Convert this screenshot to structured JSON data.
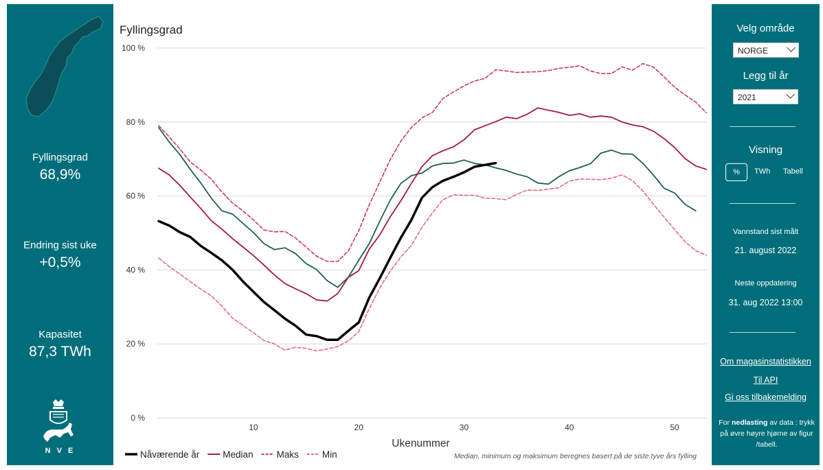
{
  "left": {
    "stats": [
      {
        "label": "Fyllingsgrad",
        "value": "68,9%"
      },
      {
        "label": "Endring sist uke",
        "value": "+0,5%"
      },
      {
        "label": "Kapasitet",
        "value": "87,3 TWh"
      }
    ],
    "logo_text": "N V E"
  },
  "right": {
    "area_label": "Velg område",
    "area_value": "NORGE",
    "year_label": "Legg til år",
    "year_value": "2021",
    "view_label": "Visning",
    "view_options": [
      "%",
      "TWh",
      "Tabell"
    ],
    "measured_label": "Vannstand sist målt",
    "measured_value": "21. august 2022",
    "next_label": "Neste oppdatering",
    "next_value": "31. aug 2022 13:00",
    "links": [
      "Om magasinstatistikken",
      "Til API",
      "Gi oss tilbakemelding"
    ],
    "note_prefix": "For ",
    "note_bold": "nedlasting",
    "note_rest": " av data : trykk på øvre høyre hjørne av figur /tabell."
  },
  "chart_data": {
    "type": "line",
    "title": "Fyllingsgrad",
    "xlabel": "Ukenummer",
    "ylabel": "",
    "xlim": [
      1,
      53
    ],
    "ylim": [
      0,
      100
    ],
    "x_ticks": [
      10,
      20,
      30,
      40,
      50
    ],
    "y_ticks": [
      "0 %",
      "20 %",
      "40 %",
      "60 %",
      "80 %",
      "100 %"
    ],
    "grid": true,
    "legend_position": "bottom-left",
    "footnote": "Median, minimum og maksimum beregnes basert på de siste tyve års fylling",
    "series": [
      {
        "name": "Nåværende år",
        "color": "#000000",
        "style": "solid-thick",
        "x": [
          1,
          2,
          3,
          4,
          5,
          6,
          7,
          8,
          9,
          10,
          11,
          12,
          13,
          14,
          15,
          16,
          17,
          18,
          19,
          20,
          21,
          22,
          23,
          24,
          25,
          26,
          27,
          28,
          29,
          30,
          31,
          32,
          33
        ],
        "y": [
          53.2,
          52,
          50.2,
          48.9,
          46.5,
          44.6,
          42.6,
          40.1,
          36.9,
          34.1,
          31.3,
          29.1,
          26.8,
          24.9,
          22.5,
          22.1,
          21.1,
          21.1,
          23.5,
          25.8,
          32.5,
          37.8,
          43.3,
          48.7,
          53.5,
          59.5,
          62.4,
          64.1,
          65.2,
          66.4,
          67.9,
          68.4,
          68.9
        ]
      },
      {
        "name": "Median",
        "color": "#a31b3a",
        "style": "solid",
        "x": [
          1,
          2,
          3,
          4,
          5,
          6,
          7,
          8,
          9,
          10,
          11,
          12,
          13,
          14,
          15,
          16,
          17,
          18,
          19,
          20,
          21,
          22,
          23,
          24,
          25,
          26,
          27,
          28,
          29,
          30,
          31,
          32,
          33,
          34,
          35,
          36,
          37,
          38,
          39,
          40,
          41,
          42,
          43,
          44,
          45,
          46,
          47,
          48,
          49,
          50,
          51,
          52,
          53
        ],
        "y": [
          67.5,
          65.7,
          62.9,
          59.7,
          56.6,
          53.3,
          51,
          48.5,
          46.2,
          43.9,
          41.3,
          38.6,
          36.3,
          34.9,
          33.6,
          31.9,
          31.6,
          33.6,
          38,
          39.8,
          45.6,
          49.5,
          54.4,
          58.7,
          63.4,
          67.9,
          70.9,
          72.2,
          73.3,
          75.2,
          77.9,
          79,
          80.1,
          81.3,
          80.9,
          82.1,
          83.8,
          83.2,
          82.6,
          81.8,
          82.2,
          81.3,
          81.6,
          81.3,
          80,
          79.2,
          78.7,
          77.5,
          75.5,
          73.1,
          70.1,
          68.1,
          67.2
        ]
      },
      {
        "name": "2021",
        "color": "#1d5e53",
        "style": "solid",
        "x": [
          1,
          2,
          3,
          4,
          5,
          6,
          7,
          8,
          9,
          10,
          11,
          12,
          13,
          14,
          15,
          16,
          17,
          18,
          19,
          20,
          21,
          22,
          23,
          24,
          25,
          26,
          27,
          28,
          29,
          30,
          31,
          32,
          33,
          34,
          35,
          36,
          37,
          38,
          39,
          40,
          41,
          42,
          43,
          44,
          45,
          46,
          47,
          48,
          49,
          50,
          51,
          52
        ],
        "y": [
          78.5,
          74.6,
          71.2,
          67.2,
          63.5,
          59.4,
          56,
          55.1,
          52.6,
          50.1,
          47.1,
          45.5,
          46,
          44.4,
          41.7,
          40.1,
          37.1,
          35.3,
          38,
          42.6,
          47.1,
          53.2,
          58.9,
          63.4,
          65.5,
          66.2,
          68.1,
          68.8,
          68.9,
          69.7,
          68.8,
          68.4,
          67.6,
          66.9,
          65.9,
          65.2,
          63.5,
          63.2,
          65.2,
          66.8,
          67.7,
          68.7,
          71.6,
          72.4,
          71.4,
          71.3,
          68.8,
          65.6,
          62.1,
          60.8,
          57.7,
          56
        ]
      },
      {
        "name": "Maks",
        "color": "#c83a56",
        "style": "dashed",
        "x": [
          1,
          2,
          3,
          4,
          5,
          6,
          7,
          8,
          9,
          10,
          11,
          12,
          13,
          14,
          15,
          16,
          17,
          18,
          19,
          20,
          21,
          22,
          23,
          24,
          25,
          26,
          27,
          28,
          29,
          30,
          31,
          32,
          33,
          34,
          35,
          36,
          37,
          38,
          39,
          40,
          41,
          42,
          43,
          44,
          45,
          46,
          47,
          48,
          49,
          50,
          51,
          52,
          53
        ],
        "y": [
          79,
          76,
          72.7,
          69.2,
          67,
          64.5,
          61.1,
          58.1,
          56,
          53.5,
          50.8,
          50.3,
          50.4,
          48.6,
          46.2,
          43.7,
          42.3,
          42.3,
          45.1,
          50.6,
          57.6,
          63.8,
          69.9,
          74.8,
          78.5,
          81.1,
          82.6,
          86.4,
          88.1,
          89.8,
          91.1,
          91.8,
          94.1,
          93.8,
          93.4,
          93.5,
          93.6,
          93.9,
          94.5,
          94.8,
          95.2,
          93.8,
          93.1,
          93.1,
          94.9,
          94,
          95.8,
          94.8,
          92.2,
          89.4,
          87.3,
          85.4,
          82.5
        ]
      },
      {
        "name": "Min",
        "color": "#e06b80",
        "style": "dashed",
        "x": [
          1,
          2,
          3,
          4,
          5,
          6,
          7,
          8,
          9,
          10,
          11,
          12,
          13,
          14,
          15,
          16,
          17,
          18,
          19,
          20,
          21,
          22,
          23,
          24,
          25,
          26,
          27,
          28,
          29,
          30,
          31,
          32,
          33,
          34,
          35,
          36,
          37,
          38,
          39,
          40,
          41,
          42,
          43,
          44,
          45,
          46,
          47,
          48,
          49,
          50,
          51,
          52,
          53
        ],
        "y": [
          43.2,
          40.9,
          38.9,
          36.8,
          34.8,
          33,
          30.2,
          27,
          25,
          23,
          20.9,
          20,
          18.3,
          19.1,
          18.8,
          18.1,
          18.6,
          19.3,
          20.8,
          23.3,
          29.5,
          35.2,
          39.7,
          43.5,
          46.6,
          51.5,
          55.4,
          59,
          60.3,
          60.2,
          60.2,
          59.4,
          59.3,
          59,
          60.4,
          61.6,
          61.5,
          61.8,
          62.2,
          64,
          64.6,
          64.5,
          64.4,
          64.8,
          65.7,
          64.1,
          61.3,
          57.7,
          54.3,
          50.9,
          47.6,
          45.2,
          44
        ]
      }
    ],
    "legend": [
      {
        "name": "Nåværende år",
        "color": "#000000",
        "style": "solid-thick"
      },
      {
        "name": "Median",
        "color": "#a31b3a",
        "style": "solid"
      },
      {
        "name": "Maks",
        "color": "#c83a56",
        "style": "dashed"
      },
      {
        "name": "Min",
        "color": "#e06b80",
        "style": "dashed"
      }
    ]
  }
}
